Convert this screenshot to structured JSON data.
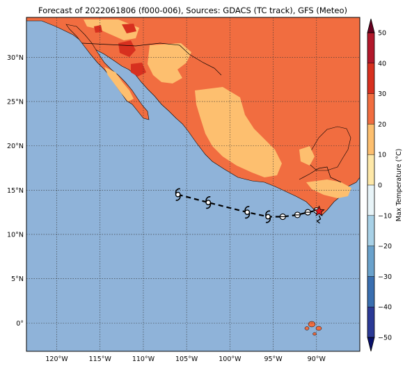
{
  "title": "Forecast of 2022061806 (f000-006), Sources: GDACS (TC track), GFS (Meteo)",
  "map": {
    "lon_range": [
      -123.5,
      -85.0
    ],
    "lat_range": [
      -3.2,
      34.5
    ],
    "ocean_color": "#8fb3d9",
    "land_colors": {
      "c10_20": "#fdbf6f",
      "c20_30": "#f16d40",
      "c30_40": "#d7301f",
      "c0_10": "#fee8a8"
    },
    "grid": true
  },
  "axes": {
    "x_ticks": [
      {
        "lon": -120,
        "label": "120°W"
      },
      {
        "lon": -115,
        "label": "115°W"
      },
      {
        "lon": -110,
        "label": "110°W"
      },
      {
        "lon": -105,
        "label": "105°W"
      },
      {
        "lon": -100,
        "label": "100°W"
      },
      {
        "lon": -95,
        "label": "95°W"
      },
      {
        "lon": -90,
        "label": "90°W"
      }
    ],
    "y_ticks": [
      {
        "lat": 0,
        "label": "0°"
      },
      {
        "lat": 5,
        "label": "5°N"
      },
      {
        "lat": 10,
        "label": "10°N"
      },
      {
        "lat": 15,
        "label": "15°N"
      },
      {
        "lat": 20,
        "label": "20°N"
      },
      {
        "lat": 25,
        "label": "25°N"
      },
      {
        "lat": 30,
        "label": "30°N"
      }
    ]
  },
  "track": {
    "current_position": {
      "lon": -89.7,
      "lat": 12.6,
      "marker": "star-icon",
      "color": "#e41a1c"
    },
    "points": [
      {
        "lon": -106.0,
        "lat": 14.5,
        "symbol": "hurricane-icon"
      },
      {
        "lon": -102.5,
        "lat": 13.6,
        "symbol": "hurricane-icon"
      },
      {
        "lon": -98.0,
        "lat": 12.5,
        "symbol": "hurricane-icon"
      },
      {
        "lon": -95.6,
        "lat": 12.0,
        "symbol": "hurricane-icon"
      },
      {
        "lon": -93.9,
        "lat": 12.0,
        "symbol": "storm-icon"
      },
      {
        "lon": -92.2,
        "lat": 12.2,
        "symbol": "storm-icon"
      },
      {
        "lon": -91.0,
        "lat": 12.5,
        "symbol": "storm-icon"
      },
      {
        "lon": -90.0,
        "lat": 12.7,
        "symbol": "storm-icon"
      }
    ]
  },
  "colorbar": {
    "label": "Max Temperature (°C)",
    "min": -50,
    "max": 50,
    "ticks": [
      "50",
      "40",
      "30",
      "20",
      "10",
      "0",
      "−10",
      "−20",
      "−30",
      "−40",
      "−50"
    ],
    "bands": [
      {
        "from": 40,
        "to": 50,
        "color": "#b2182b"
      },
      {
        "from": 30,
        "to": 40,
        "color": "#d7301f"
      },
      {
        "from": 20,
        "to": 30,
        "color": "#f16d40"
      },
      {
        "from": 10,
        "to": 20,
        "color": "#fdbf6f"
      },
      {
        "from": 0,
        "to": 10,
        "color": "#fee8a8"
      },
      {
        "from": -10,
        "to": 0,
        "color": "#e8f4f8"
      },
      {
        "from": -20,
        "to": -10,
        "color": "#a8d1e7"
      },
      {
        "from": -30,
        "to": -20,
        "color": "#6aa2cc"
      },
      {
        "from": -40,
        "to": -30,
        "color": "#3a6fb0"
      },
      {
        "from": -50,
        "to": -40,
        "color": "#2b3a96"
      }
    ],
    "extend_max_color": "#67001f",
    "extend_min_color": "#08106b"
  }
}
